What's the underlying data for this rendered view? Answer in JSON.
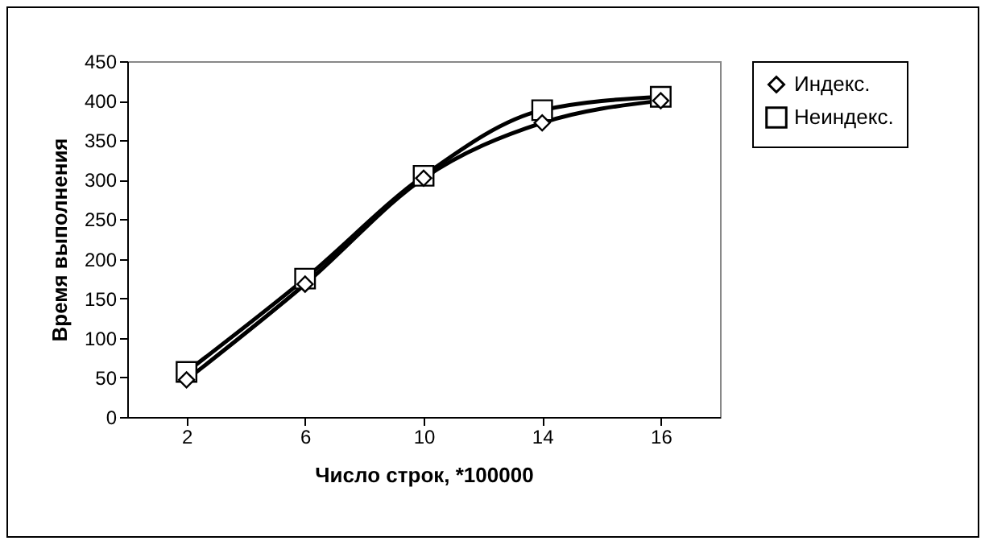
{
  "chart_data": {
    "type": "line",
    "xlabel": "Число строк, *100000",
    "ylabel": "Время выполнения",
    "categories": [
      "2",
      "6",
      "10",
      "14",
      "16"
    ],
    "series": [
      {
        "name": "Индекс.",
        "color": "#000000",
        "marker": "diamond",
        "values": [
          47,
          168,
          302,
          372,
          400
        ]
      },
      {
        "name": "Неиндекс.",
        "color": "#000000",
        "marker": "square",
        "values": [
          57,
          175,
          305,
          388,
          405
        ]
      }
    ],
    "ylim": [
      0,
      450
    ],
    "yticks": [
      0,
      50,
      100,
      150,
      200,
      250,
      300,
      350,
      400,
      450
    ],
    "grid": false,
    "legend": "right"
  }
}
